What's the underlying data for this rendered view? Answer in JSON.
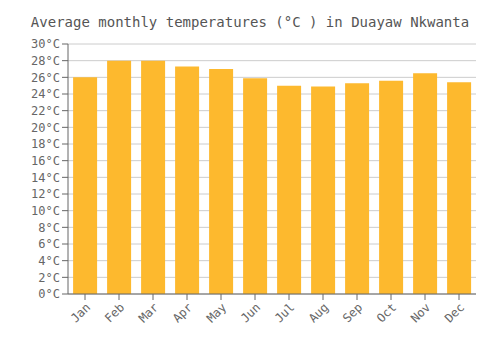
{
  "chart_data": {
    "type": "bar",
    "title": "Average monthly temperatures (°C ) in Duayaw Nkwanta",
    "categories": [
      "Jan",
      "Feb",
      "Mar",
      "Apr",
      "May",
      "Jun",
      "Jul",
      "Aug",
      "Sep",
      "Oct",
      "Nov",
      "Dec"
    ],
    "values": [
      26.0,
      28.0,
      28.0,
      27.3,
      27.0,
      25.9,
      25.0,
      24.9,
      25.3,
      25.6,
      26.5,
      25.4
    ],
    "color": "#FDB92E",
    "ylim": [
      0,
      30
    ],
    "yticks": [
      {
        "value": 0,
        "label": "0°C"
      },
      {
        "value": 2,
        "label": "2°C"
      },
      {
        "value": 4,
        "label": "4°C"
      },
      {
        "value": 6,
        "label": "6°C"
      },
      {
        "value": 8,
        "label": "8°C"
      },
      {
        "value": 10,
        "label": "10°C"
      },
      {
        "value": 12,
        "label": "12°C"
      },
      {
        "value": 14,
        "label": "14°C"
      },
      {
        "value": 16,
        "label": "16°C"
      },
      {
        "value": 18,
        "label": "18°C"
      },
      {
        "value": 20,
        "label": "20°C"
      },
      {
        "value": 22,
        "label": "22°C"
      },
      {
        "value": 24,
        "label": "24°C"
      },
      {
        "value": 26,
        "label": "26°C"
      },
      {
        "value": 28,
        "label": "28°C"
      },
      {
        "value": 30,
        "label": "30°C"
      }
    ],
    "grid": true
  }
}
